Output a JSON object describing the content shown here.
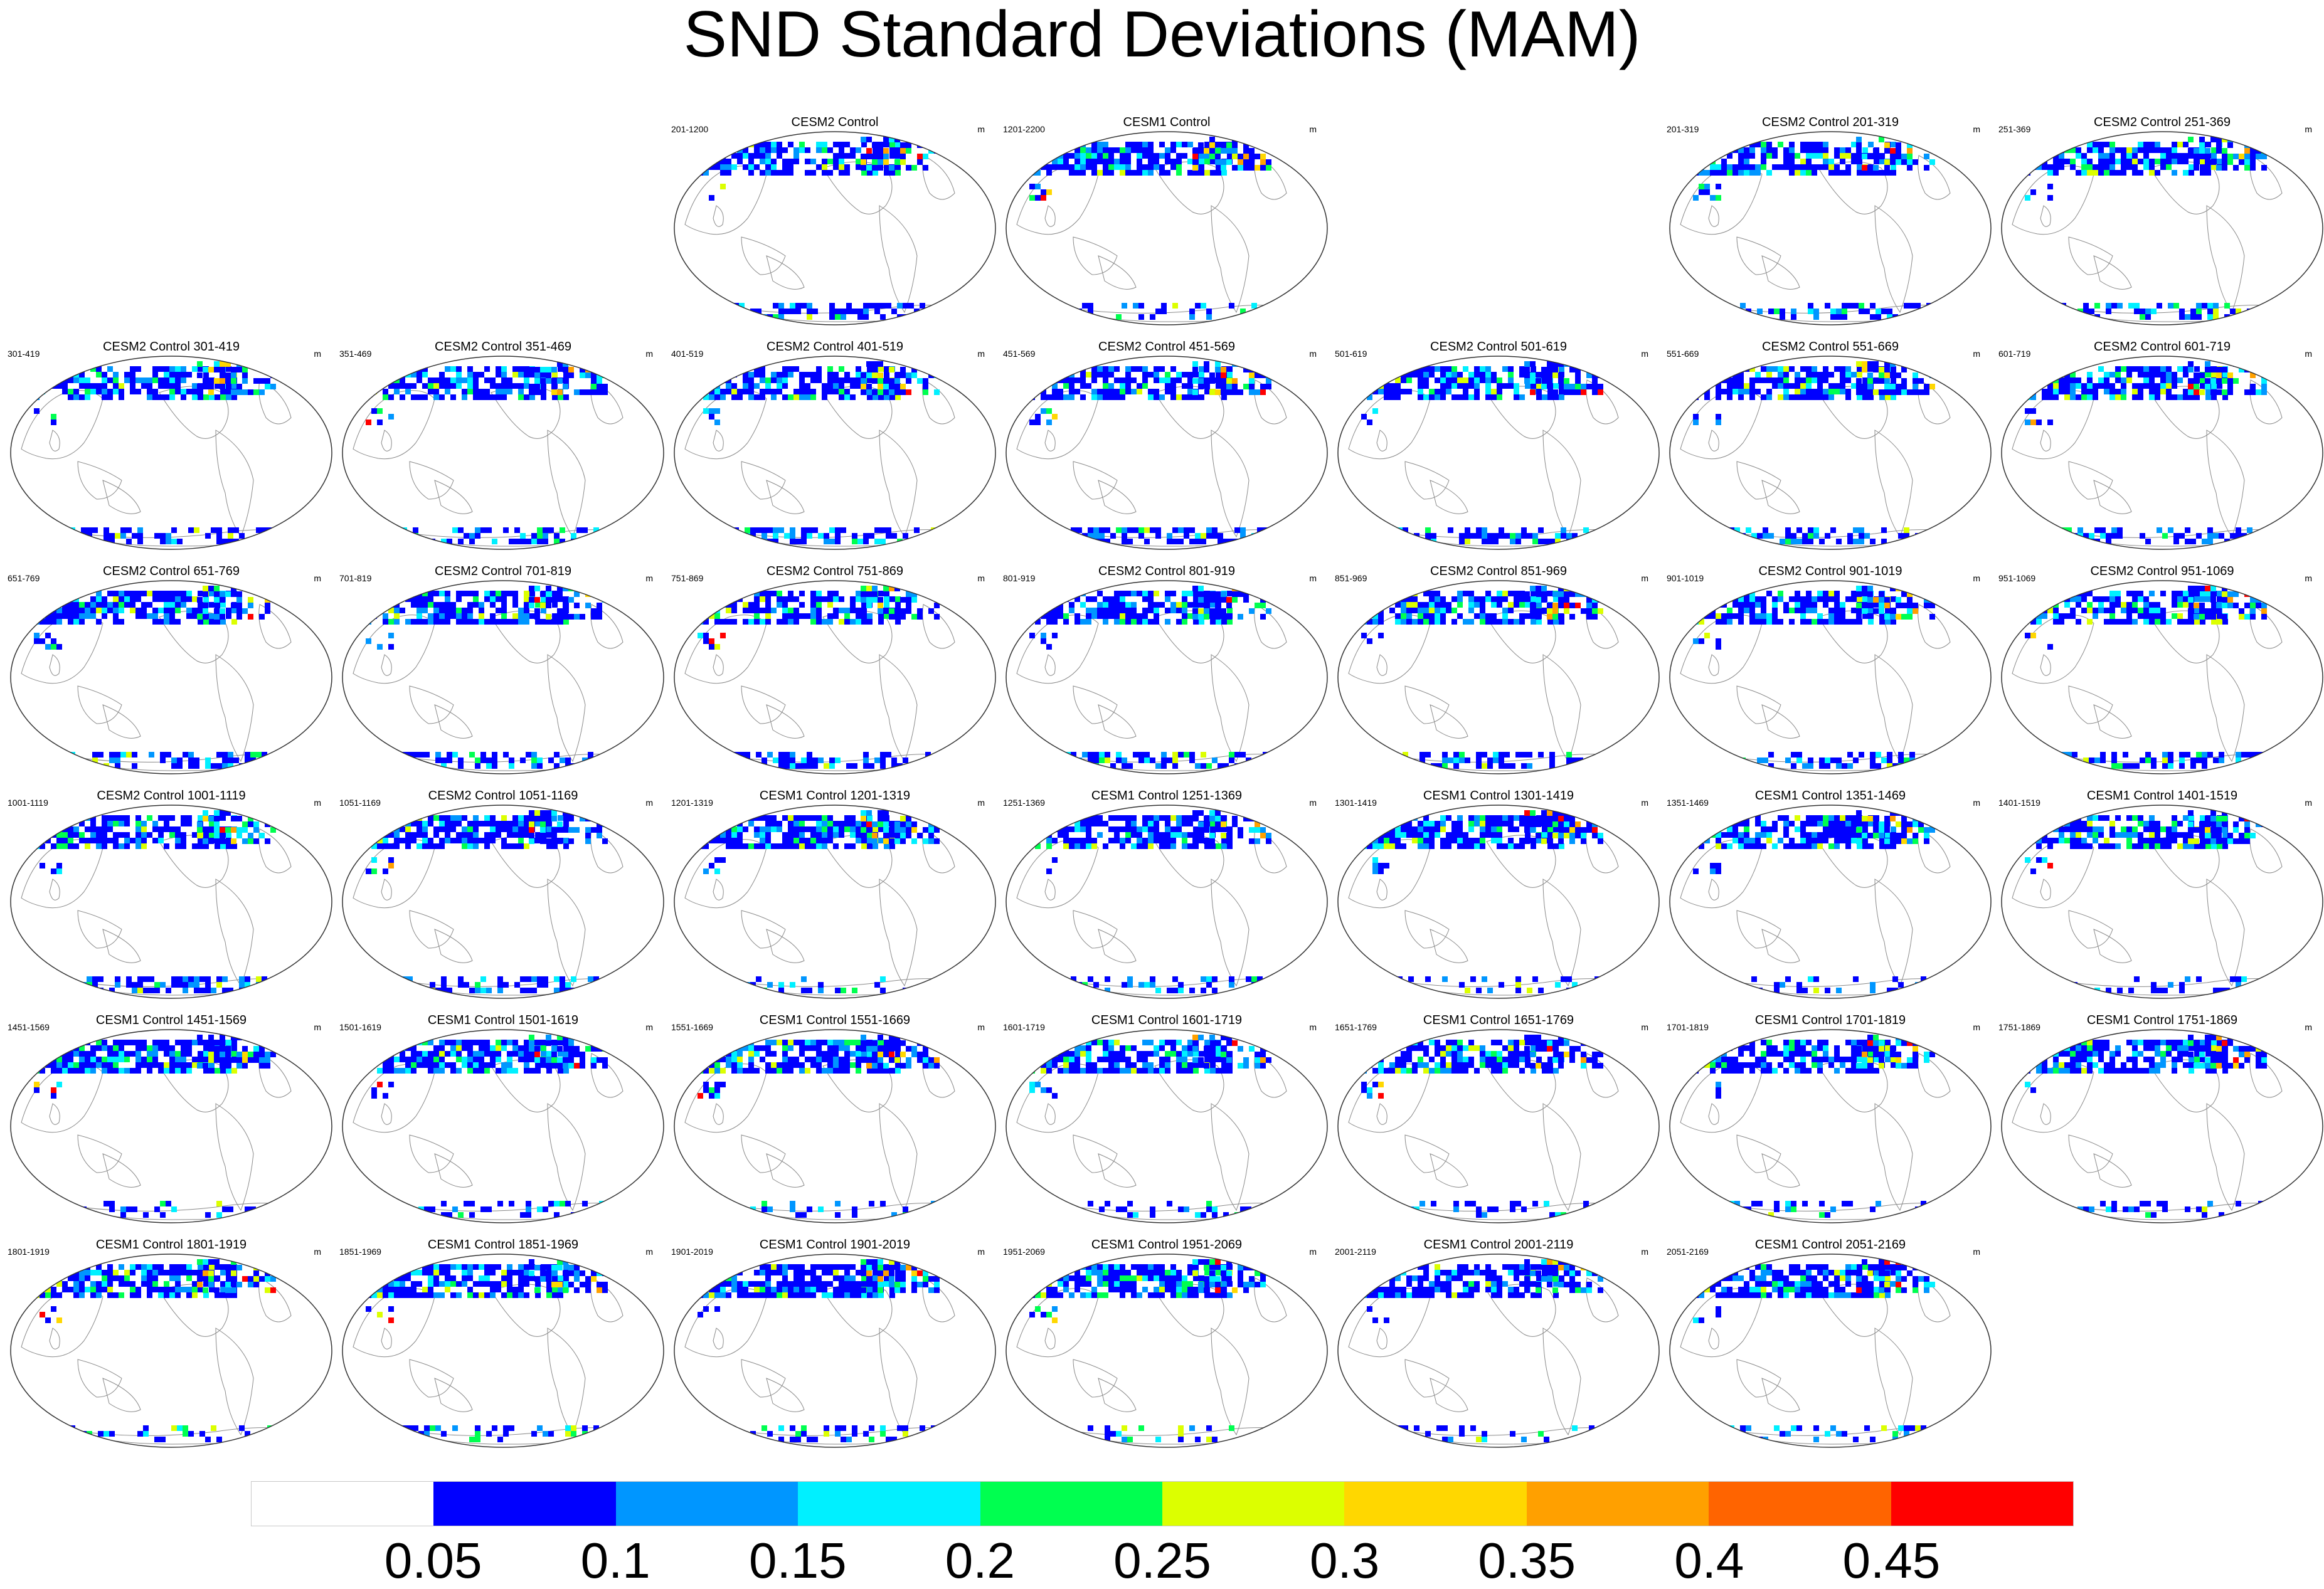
{
  "title": "SND Standard Deviations (MAM)",
  "units": "m",
  "chart_data": {
    "type": "heatmap",
    "title": "SND Standard Deviations (MAM)",
    "units": "m",
    "colorbar": {
      "colors": [
        "#ffffff",
        "#0000ff",
        "#0096ff",
        "#00f0ff",
        "#00ff50",
        "#dcff00",
        "#ffd700",
        "#ffa000",
        "#ff6400",
        "#ff0000"
      ],
      "labels": [
        "0.05",
        "0.1",
        "0.15",
        "0.2",
        "0.25",
        "0.3",
        "0.35",
        "0.4",
        "0.45"
      ]
    },
    "panels": [
      {
        "title": "CESM2 Control",
        "period": "201-1200",
        "model": "CESM2",
        "row": 0,
        "col": 2
      },
      {
        "title": "CESM1 Control",
        "period": "1201-2200",
        "model": "CESM1",
        "row": 0,
        "col": 3
      },
      {
        "title": "CESM2 Control 201-319",
        "period": "201-319",
        "model": "CESM2",
        "row": 0,
        "col": 5
      },
      {
        "title": "CESM2 Control 251-369",
        "period": "251-369",
        "model": "CESM2",
        "row": 0,
        "col": 6
      },
      {
        "title": "CESM2 Control 301-419",
        "period": "301-419",
        "model": "CESM2",
        "row": 1,
        "col": 0
      },
      {
        "title": "CESM2 Control 351-469",
        "period": "351-469",
        "model": "CESM2",
        "row": 1,
        "col": 1
      },
      {
        "title": "CESM2 Control 401-519",
        "period": "401-519",
        "model": "CESM2",
        "row": 1,
        "col": 2
      },
      {
        "title": "CESM2 Control 451-569",
        "period": "451-569",
        "model": "CESM2",
        "row": 1,
        "col": 3
      },
      {
        "title": "CESM2 Control 501-619",
        "period": "501-619",
        "model": "CESM2",
        "row": 1,
        "col": 4
      },
      {
        "title": "CESM2 Control 551-669",
        "period": "551-669",
        "model": "CESM2",
        "row": 1,
        "col": 5
      },
      {
        "title": "CESM2 Control 601-719",
        "period": "601-719",
        "model": "CESM2",
        "row": 1,
        "col": 6
      },
      {
        "title": "CESM2 Control 651-769",
        "period": "651-769",
        "model": "CESM2",
        "row": 2,
        "col": 0
      },
      {
        "title": "CESM2 Control 701-819",
        "period": "701-819",
        "model": "CESM2",
        "row": 2,
        "col": 1
      },
      {
        "title": "CESM2 Control 751-869",
        "period": "751-869",
        "model": "CESM2",
        "row": 2,
        "col": 2
      },
      {
        "title": "CESM2 Control 801-919",
        "period": "801-919",
        "model": "CESM2",
        "row": 2,
        "col": 3
      },
      {
        "title": "CESM2 Control 851-969",
        "period": "851-969",
        "model": "CESM2",
        "row": 2,
        "col": 4
      },
      {
        "title": "CESM2 Control 901-1019",
        "period": "901-1019",
        "model": "CESM2",
        "row": 2,
        "col": 5
      },
      {
        "title": "CESM2 Control 951-1069",
        "period": "951-1069",
        "model": "CESM2",
        "row": 2,
        "col": 6
      },
      {
        "title": "CESM2 Control 1001-1119",
        "period": "1001-1119",
        "model": "CESM2",
        "row": 3,
        "col": 0
      },
      {
        "title": "CESM2 Control 1051-1169",
        "period": "1051-1169",
        "model": "CESM2",
        "row": 3,
        "col": 1
      },
      {
        "title": "CESM1 Control 1201-1319",
        "period": "1201-1319",
        "model": "CESM1",
        "row": 3,
        "col": 2
      },
      {
        "title": "CESM1 Control 1251-1369",
        "period": "1251-1369",
        "model": "CESM1",
        "row": 3,
        "col": 3
      },
      {
        "title": "CESM1 Control 1301-1419",
        "period": "1301-1419",
        "model": "CESM1",
        "row": 3,
        "col": 4
      },
      {
        "title": "CESM1 Control 1351-1469",
        "period": "1351-1469",
        "model": "CESM1",
        "row": 3,
        "col": 5
      },
      {
        "title": "CESM1 Control 1401-1519",
        "period": "1401-1519",
        "model": "CESM1",
        "row": 3,
        "col": 6
      },
      {
        "title": "CESM1 Control 1451-1569",
        "period": "1451-1569",
        "model": "CESM1",
        "row": 4,
        "col": 0
      },
      {
        "title": "CESM1 Control 1501-1619",
        "period": "1501-1619",
        "model": "CESM1",
        "row": 4,
        "col": 1
      },
      {
        "title": "CESM1 Control 1551-1669",
        "period": "1551-1669",
        "model": "CESM1",
        "row": 4,
        "col": 2
      },
      {
        "title": "CESM1 Control 1601-1719",
        "period": "1601-1719",
        "model": "CESM1",
        "row": 4,
        "col": 3
      },
      {
        "title": "CESM1 Control 1651-1769",
        "period": "1651-1769",
        "model": "CESM1",
        "row": 4,
        "col": 4
      },
      {
        "title": "CESM1 Control 1701-1819",
        "period": "1701-1819",
        "model": "CESM1",
        "row": 4,
        "col": 5
      },
      {
        "title": "CESM1 Control 1751-1869",
        "period": "1751-1869",
        "model": "CESM1",
        "row": 4,
        "col": 6
      },
      {
        "title": "CESM1 Control 1801-1919",
        "period": "1801-1919",
        "model": "CESM1",
        "row": 5,
        "col": 0
      },
      {
        "title": "CESM1 Control 1851-1969",
        "period": "1851-1969",
        "model": "CESM1",
        "row": 5,
        "col": 1
      },
      {
        "title": "CESM1 Control 1901-2019",
        "period": "1901-2019",
        "model": "CESM1",
        "row": 5,
        "col": 2
      },
      {
        "title": "CESM1 Control 1951-2069",
        "period": "1951-2069",
        "model": "CESM1",
        "row": 5,
        "col": 3
      },
      {
        "title": "CESM1 Control 2001-2119",
        "period": "2001-2119",
        "model": "CESM1",
        "row": 5,
        "col": 4
      },
      {
        "title": "CESM1 Control 2051-2169",
        "period": "2051-2169",
        "model": "CESM1",
        "row": 5,
        "col": 5
      }
    ]
  }
}
